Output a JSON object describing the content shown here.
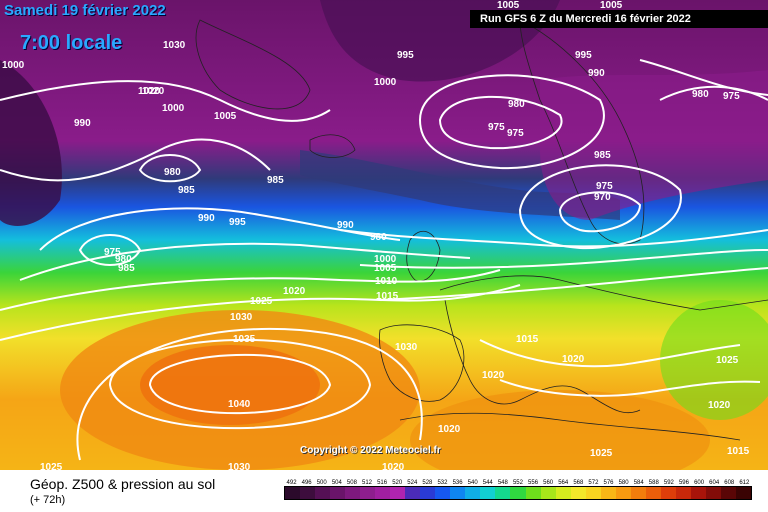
{
  "header": {
    "date": "Samedi 19 février 2022",
    "time": "7:00 locale",
    "run": "Run GFS 6 Z du Mercredi 16 février 2022"
  },
  "footer": {
    "parameter": "Géop. Z500 & pression au sol",
    "horizon": "(+ 72h)",
    "copyright": "Copyright © 2022 Meteociel.fr"
  },
  "legend": {
    "ticks": [
      "492",
      "496",
      "500",
      "504",
      "508",
      "512",
      "516",
      "520",
      "524",
      "528",
      "532",
      "536",
      "540",
      "544",
      "548",
      "552",
      "556",
      "560",
      "564",
      "568",
      "572",
      "576",
      "580",
      "584",
      "588",
      "592",
      "596",
      "600",
      "604",
      "608",
      "612"
    ],
    "colors": [
      "#2b0a2b",
      "#3d0d3d",
      "#551055",
      "#6a146a",
      "#7e197e",
      "#8e1e8e",
      "#a01fa0",
      "#b024b0",
      "#4b2bb8",
      "#2a3bd6",
      "#1658f0",
      "#0f86f0",
      "#10aee6",
      "#12d0d2",
      "#14d88e",
      "#30d840",
      "#6ede1c",
      "#a8e61a",
      "#d6ec1e",
      "#f4e82a",
      "#f9d420",
      "#f9b616",
      "#f79a10",
      "#f27d0c",
      "#ea5e0a",
      "#de3e0a",
      "#c8280a",
      "#a8140a",
      "#820c08",
      "#5a0606",
      "#3a0303"
    ]
  },
  "pressure_labels": [
    "1030",
    "1000",
    "1020",
    "1000",
    "995",
    "995",
    "1005",
    "990",
    "1000",
    "980",
    "975",
    "975",
    "980",
    "975",
    "1005",
    "1020",
    "1005",
    "990",
    "980",
    "985",
    "985",
    "985",
    "975",
    "970",
    "995",
    "990",
    "990",
    "980",
    "975",
    "980",
    "985",
    "1000",
    "1005",
    "1010",
    "1015",
    "1025",
    "1020",
    "1030",
    "1035",
    "1040",
    "1030",
    "1015",
    "1020",
    "1025",
    "1020",
    "1020",
    "1025",
    "1020",
    "1015",
    "1025",
    "1030",
    "1020"
  ],
  "map_zones": {
    "deep_purple": "#4a0f55",
    "purple": "#8a1c8a",
    "navy": "#2f3a7a",
    "blue": "#1a55e0",
    "cyan": "#14bedd",
    "green": "#3ad43a",
    "yellowgreen": "#b8e41c",
    "yellow": "#f2e02a",
    "orange": "#f5a516",
    "deep_orange": "#ef7a0e"
  }
}
